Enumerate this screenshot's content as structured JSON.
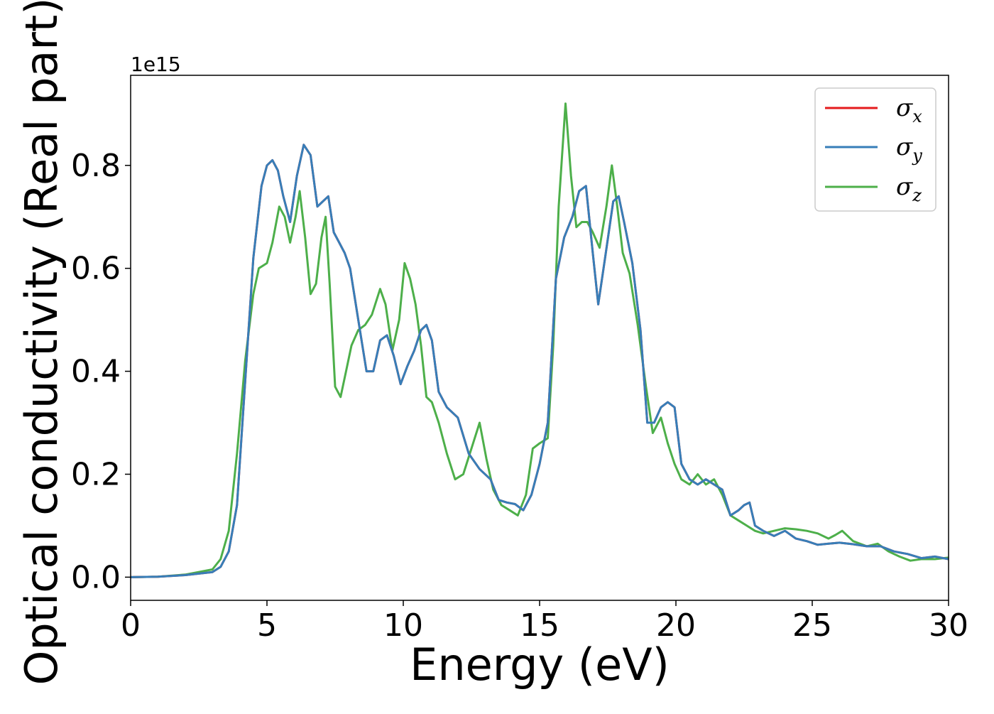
{
  "chart_data": {
    "type": "line",
    "title": "",
    "xlabel": "Energy (eV)",
    "ylabel": "Optical conductivity (Real part)",
    "y_offset_text": "1e15",
    "xlim": [
      0,
      30
    ],
    "ylim": [
      -0.045,
      0.975
    ],
    "xticks": [
      0,
      5,
      10,
      15,
      20,
      25,
      30
    ],
    "xtick_labels": [
      "0",
      "5",
      "10",
      "15",
      "20",
      "25",
      "30"
    ],
    "yticks": [
      0.0,
      0.2,
      0.4,
      0.6,
      0.8
    ],
    "ytick_labels": [
      "0.0",
      "0.2",
      "0.4",
      "0.6",
      "0.8"
    ],
    "grid": false,
    "legend_position": "top-right",
    "series": [
      {
        "name": "σ",
        "subscript": "x",
        "color": "#e41a1c",
        "x": [
          0,
          1,
          2,
          3,
          3.3,
          3.6,
          3.9,
          4.2,
          4.5,
          4.8,
          5.0,
          5.2,
          5.4,
          5.6,
          5.85,
          6.1,
          6.35,
          6.6,
          6.85,
          7.05,
          7.25,
          7.45,
          7.65,
          7.85,
          8.05,
          8.35,
          8.65,
          8.9,
          9.15,
          9.4,
          9.65,
          9.9,
          10.15,
          10.4,
          10.65,
          10.85,
          11.05,
          11.3,
          11.6,
          12.0,
          12.4,
          12.8,
          13.2,
          13.5,
          13.8,
          14.1,
          14.4,
          14.7,
          15.0,
          15.3,
          15.6,
          15.9,
          16.2,
          16.45,
          16.7,
          16.95,
          17.15,
          17.4,
          17.7,
          17.9,
          18.1,
          18.4,
          18.7,
          18.95,
          19.2,
          19.45,
          19.7,
          19.95,
          20.2,
          20.5,
          20.8,
          21.1,
          21.4,
          21.7,
          22.0,
          22.3,
          22.5,
          22.7,
          22.9,
          23.2,
          23.6,
          24.0,
          24.4,
          24.8,
          25.2,
          25.6,
          26.0,
          26.5,
          27.0,
          27.5,
          28.0,
          28.5,
          29.0,
          29.5,
          30.0
        ],
        "y": [
          0.0,
          0.001,
          0.004,
          0.01,
          0.02,
          0.05,
          0.14,
          0.38,
          0.62,
          0.76,
          0.8,
          0.81,
          0.79,
          0.74,
          0.69,
          0.78,
          0.84,
          0.82,
          0.72,
          0.73,
          0.74,
          0.67,
          0.65,
          0.63,
          0.6,
          0.5,
          0.4,
          0.4,
          0.46,
          0.47,
          0.43,
          0.375,
          0.41,
          0.44,
          0.48,
          0.49,
          0.46,
          0.36,
          0.33,
          0.31,
          0.24,
          0.21,
          0.19,
          0.15,
          0.145,
          0.142,
          0.13,
          0.16,
          0.22,
          0.3,
          0.58,
          0.66,
          0.7,
          0.75,
          0.76,
          0.63,
          0.53,
          0.62,
          0.73,
          0.74,
          0.69,
          0.61,
          0.48,
          0.3,
          0.3,
          0.33,
          0.34,
          0.33,
          0.22,
          0.19,
          0.18,
          0.19,
          0.18,
          0.17,
          0.12,
          0.13,
          0.14,
          0.145,
          0.1,
          0.09,
          0.08,
          0.09,
          0.075,
          0.07,
          0.063,
          0.065,
          0.067,
          0.064,
          0.06,
          0.06,
          0.05,
          0.045,
          0.037,
          0.04,
          0.035
        ]
      },
      {
        "name": "σ",
        "subscript": "y",
        "color": "#377eb8",
        "x": [
          0,
          1,
          2,
          3,
          3.3,
          3.6,
          3.9,
          4.2,
          4.5,
          4.8,
          5.0,
          5.2,
          5.4,
          5.6,
          5.85,
          6.1,
          6.35,
          6.6,
          6.85,
          7.05,
          7.25,
          7.45,
          7.65,
          7.85,
          8.05,
          8.35,
          8.65,
          8.9,
          9.15,
          9.4,
          9.65,
          9.9,
          10.15,
          10.4,
          10.65,
          10.85,
          11.05,
          11.3,
          11.6,
          12.0,
          12.4,
          12.8,
          13.2,
          13.5,
          13.8,
          14.1,
          14.4,
          14.7,
          15.0,
          15.3,
          15.6,
          15.9,
          16.2,
          16.45,
          16.7,
          16.95,
          17.15,
          17.4,
          17.7,
          17.9,
          18.1,
          18.4,
          18.7,
          18.95,
          19.2,
          19.45,
          19.7,
          19.95,
          20.2,
          20.5,
          20.8,
          21.1,
          21.4,
          21.7,
          22.0,
          22.3,
          22.5,
          22.7,
          22.9,
          23.2,
          23.6,
          24.0,
          24.4,
          24.8,
          25.2,
          25.6,
          26.0,
          26.5,
          27.0,
          27.5,
          28.0,
          28.5,
          29.0,
          29.5,
          30.0
        ],
        "y": [
          0.0,
          0.001,
          0.004,
          0.01,
          0.02,
          0.05,
          0.14,
          0.38,
          0.62,
          0.76,
          0.8,
          0.81,
          0.79,
          0.74,
          0.69,
          0.78,
          0.84,
          0.82,
          0.72,
          0.73,
          0.74,
          0.67,
          0.65,
          0.63,
          0.6,
          0.5,
          0.4,
          0.4,
          0.46,
          0.47,
          0.43,
          0.375,
          0.41,
          0.44,
          0.48,
          0.49,
          0.46,
          0.36,
          0.33,
          0.31,
          0.24,
          0.21,
          0.19,
          0.15,
          0.145,
          0.142,
          0.13,
          0.16,
          0.22,
          0.3,
          0.58,
          0.66,
          0.7,
          0.75,
          0.76,
          0.63,
          0.53,
          0.62,
          0.73,
          0.74,
          0.69,
          0.61,
          0.48,
          0.3,
          0.3,
          0.33,
          0.34,
          0.33,
          0.22,
          0.19,
          0.18,
          0.19,
          0.18,
          0.17,
          0.12,
          0.13,
          0.14,
          0.145,
          0.1,
          0.09,
          0.08,
          0.09,
          0.075,
          0.07,
          0.063,
          0.065,
          0.067,
          0.064,
          0.06,
          0.06,
          0.05,
          0.045,
          0.037,
          0.04,
          0.035
        ]
      },
      {
        "name": "σ",
        "subscript": "z",
        "color": "#4daf4a",
        "x": [
          0,
          1,
          2,
          3,
          3.3,
          3.6,
          3.9,
          4.2,
          4.5,
          4.7,
          5.0,
          5.2,
          5.45,
          5.65,
          5.85,
          6.05,
          6.2,
          6.4,
          6.6,
          6.8,
          7.0,
          7.15,
          7.3,
          7.5,
          7.7,
          7.9,
          8.1,
          8.35,
          8.6,
          8.85,
          9.15,
          9.35,
          9.6,
          9.85,
          10.05,
          10.25,
          10.45,
          10.65,
          10.85,
          11.05,
          11.3,
          11.6,
          11.9,
          12.2,
          12.5,
          12.8,
          13.05,
          13.3,
          13.6,
          13.9,
          14.2,
          14.5,
          14.75,
          15.0,
          15.3,
          15.5,
          15.7,
          15.95,
          16.15,
          16.35,
          16.55,
          16.75,
          16.95,
          17.2,
          17.45,
          17.65,
          17.85,
          18.05,
          18.3,
          18.6,
          18.9,
          19.15,
          19.45,
          19.7,
          19.95,
          20.2,
          20.5,
          20.8,
          21.1,
          21.4,
          21.7,
          22.0,
          22.3,
          22.6,
          22.9,
          23.2,
          23.6,
          24.0,
          24.4,
          24.8,
          25.2,
          25.6,
          25.85,
          26.1,
          26.5,
          27.0,
          27.4,
          27.8,
          28.2,
          28.6,
          29.0,
          29.5,
          30.0
        ],
        "y": [
          0.0,
          0.001,
          0.005,
          0.015,
          0.035,
          0.09,
          0.24,
          0.42,
          0.55,
          0.6,
          0.61,
          0.65,
          0.72,
          0.7,
          0.65,
          0.7,
          0.75,
          0.66,
          0.55,
          0.57,
          0.66,
          0.7,
          0.57,
          0.37,
          0.35,
          0.4,
          0.45,
          0.48,
          0.49,
          0.51,
          0.56,
          0.53,
          0.44,
          0.5,
          0.61,
          0.58,
          0.53,
          0.45,
          0.35,
          0.34,
          0.3,
          0.24,
          0.19,
          0.2,
          0.25,
          0.3,
          0.23,
          0.17,
          0.14,
          0.13,
          0.12,
          0.16,
          0.25,
          0.26,
          0.27,
          0.45,
          0.72,
          0.92,
          0.78,
          0.68,
          0.69,
          0.69,
          0.67,
          0.64,
          0.72,
          0.8,
          0.72,
          0.63,
          0.59,
          0.49,
          0.37,
          0.28,
          0.31,
          0.26,
          0.22,
          0.19,
          0.18,
          0.2,
          0.18,
          0.19,
          0.16,
          0.12,
          0.11,
          0.1,
          0.09,
          0.085,
          0.09,
          0.095,
          0.093,
          0.09,
          0.085,
          0.075,
          0.082,
          0.09,
          0.07,
          0.06,
          0.065,
          0.05,
          0.04,
          0.032,
          0.035,
          0.035,
          0.038
        ]
      }
    ]
  }
}
